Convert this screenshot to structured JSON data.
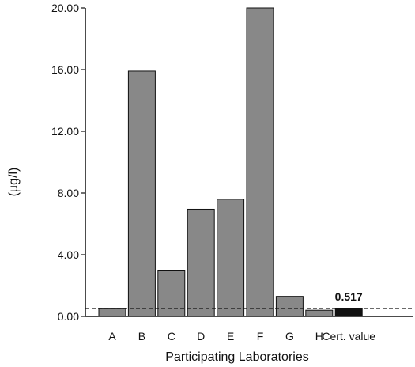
{
  "chart_data": {
    "type": "bar",
    "title": "",
    "xlabel": "Participating Laboratories",
    "ylabel": "(µg/l)",
    "ylim": [
      0,
      20
    ],
    "yticks": [
      "0.00",
      "4.00",
      "8.00",
      "12.00",
      "16.00",
      "20.00"
    ],
    "categories": [
      "A",
      "B",
      "C",
      "D",
      "E",
      "F",
      "G",
      "H",
      "Cert. value"
    ],
    "values": [
      0.5,
      15.9,
      3.0,
      6.95,
      7.6,
      20.0,
      1.3,
      0.4,
      0.517
    ],
    "certified_value": 0.517,
    "certified_value_label": "0.517",
    "reference_line": "dashed at certified value",
    "grid": false,
    "legend": "none",
    "colors": {
      "lab_bar": "#888888",
      "certified_bar": "#111111",
      "line": "#111111"
    }
  }
}
